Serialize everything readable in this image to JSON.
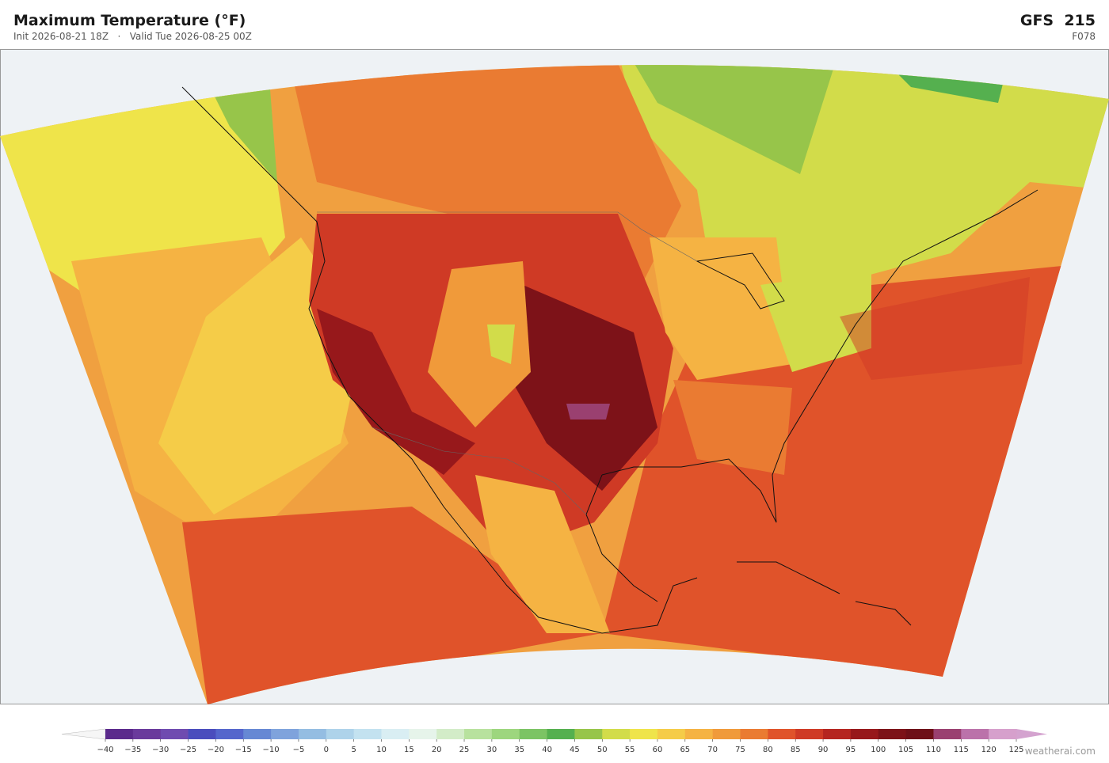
{
  "header": {
    "title": "Maximum Temperature  (°F)",
    "subtitle": "Init 2026-08-21 18Z   ·   Valid Tue 2026-08-25 00Z",
    "model": "GFS  215",
    "forecast_hour": "F078"
  },
  "colorbar": {
    "ticks": [
      "−40",
      "−35",
      "−30",
      "−25",
      "−20",
      "−15",
      "−10",
      "−5",
      "0",
      "5",
      "10",
      "15",
      "20",
      "25",
      "30",
      "35",
      "40",
      "45",
      "50",
      "55",
      "60",
      "65",
      "70",
      "75",
      "80",
      "85",
      "90",
      "95",
      "100",
      "105",
      "110",
      "115",
      "120",
      "125"
    ],
    "colors": [
      "#5b2a8c",
      "#6a3a9c",
      "#6f4bb0",
      "#4a4dbd",
      "#5566cc",
      "#6688d4",
      "#7fa3dc",
      "#94bde2",
      "#aed3ea",
      "#c3e2f0",
      "#d9eef3",
      "#e6f4ea",
      "#d3ecc8",
      "#b8e29e",
      "#9dd67e",
      "#7cc464",
      "#55b04f",
      "#97c54a",
      "#d2dc4a",
      "#efe44a",
      "#f5cc48",
      "#f5b343",
      "#f09a3a",
      "#ea7b32",
      "#e0532a",
      "#cf3a25",
      "#b52520",
      "#97181b",
      "#7d1218",
      "#6e1018",
      "#9a4070",
      "#bb72aa",
      "#d6a0cc"
    ],
    "under_color": "#f6f6f6",
    "over_color": "#d4a3cf"
  },
  "watermark": "weatherai.com"
}
